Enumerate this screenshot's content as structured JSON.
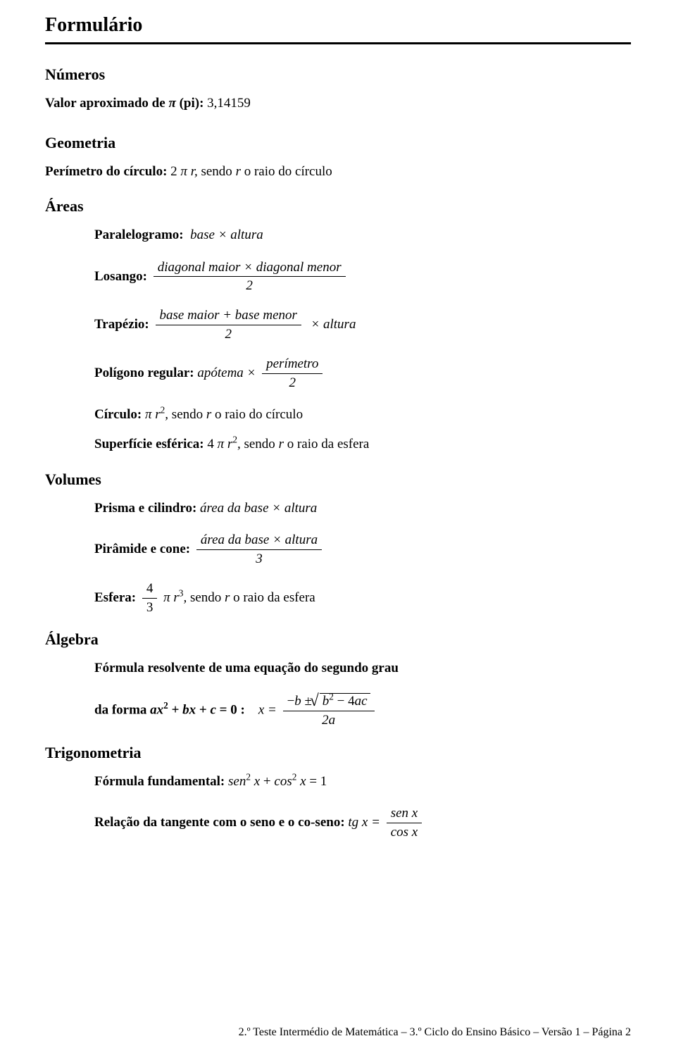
{
  "title": "Formulário",
  "sections": {
    "numeros": {
      "heading": "Números",
      "pi_line": {
        "label": "Valor aproximado de ",
        "pi_symbol": "π",
        "pi_paren": " (pi): ",
        "value": "3,14159"
      }
    },
    "geometria": {
      "heading": "Geometria",
      "perimetro": {
        "label": "Perímetro do círculo: ",
        "formula_prefix": "2 ",
        "pi": "π",
        "r": " r,",
        "suffix": "   sendo ",
        "r2": " r ",
        "suffix2": " o raio do círculo"
      }
    },
    "areas": {
      "heading": "Áreas",
      "paralelogramo": {
        "label": "Paralelogramo:",
        "formula": "base × altura"
      },
      "losango": {
        "label": "Losango:",
        "num": "diagonal maior × diagonal menor",
        "den": "2"
      },
      "trapezio": {
        "label": "Trapézio:",
        "num": "base maior + base menor",
        "den": "2",
        "tail": "× altura"
      },
      "poligono": {
        "label": "Polígono regular:",
        "lead": " apótema ×",
        "num": "perímetro",
        "den": "2"
      },
      "circulo": {
        "label": "Círculo:",
        "pi": " π",
        "r": " r",
        "exp": "2",
        "comma": ",",
        "suffix": "   sendo ",
        "rvar": " r ",
        "suffix2": " o raio do círculo"
      },
      "superficie": {
        "label": "Superfície esférica:",
        "lead": " 4 ",
        "pi": "π",
        "r": " r",
        "exp": "2",
        "comma": ",",
        "suffix": "   sendo ",
        "rvar": " r ",
        "suffix2": " o raio da esfera"
      }
    },
    "volumes": {
      "heading": "Volumes",
      "prisma": {
        "label": "Prisma e cilindro:",
        "formula": " área da base × altura"
      },
      "piramide": {
        "label": "Pirâmide e cone:",
        "num": "área da base × altura",
        "den": "3"
      },
      "esfera": {
        "label": "Esfera:",
        "frac_num": "4",
        "frac_den": "3",
        "pi": " π",
        "r": " r",
        "exp": "3",
        "comma": ",",
        "suffix": "   sendo ",
        "rvar": " r ",
        "suffix2": " o raio da esfera"
      }
    },
    "algebra": {
      "heading": "Álgebra",
      "resolvente": {
        "line1": "Fórmula resolvente de uma equação do segundo grau",
        "line2_label": "da forma  ",
        "line2_eq_lhs_a": "a",
        "line2_eq_lhs_x": "x",
        "exp2": "2",
        "plus": " + ",
        "b": "b",
        "x": "x",
        "c": "c",
        "eqzero": " = 0",
        "colon": " :",
        "x_eq": "x = ",
        "num_pre": "−",
        "num_b": "b",
        "pm": " ± ",
        "rad_b": "b",
        "rad_exp": "2",
        "rad_minus": " − 4",
        "rad_a": "a",
        "rad_c": "c",
        "den": "2a"
      }
    },
    "trig": {
      "heading": "Trigonometria",
      "fundamental": {
        "label": "Fórmula fundamental:",
        "sen": " sen",
        "exp": "2",
        "x1": " x",
        "plus": " + ",
        "cos": "cos",
        "x2": " x",
        "eq": " = 1"
      },
      "tangente": {
        "label": "Relação da tangente com o seno e o co-seno:",
        "tg": " tg x = ",
        "num": "sen x",
        "den": "cos x"
      }
    }
  },
  "footer": "2.º Teste Intermédio de Matemática – 3.º Ciclo do Ensino Básico – Versão 1 – Página 2"
}
